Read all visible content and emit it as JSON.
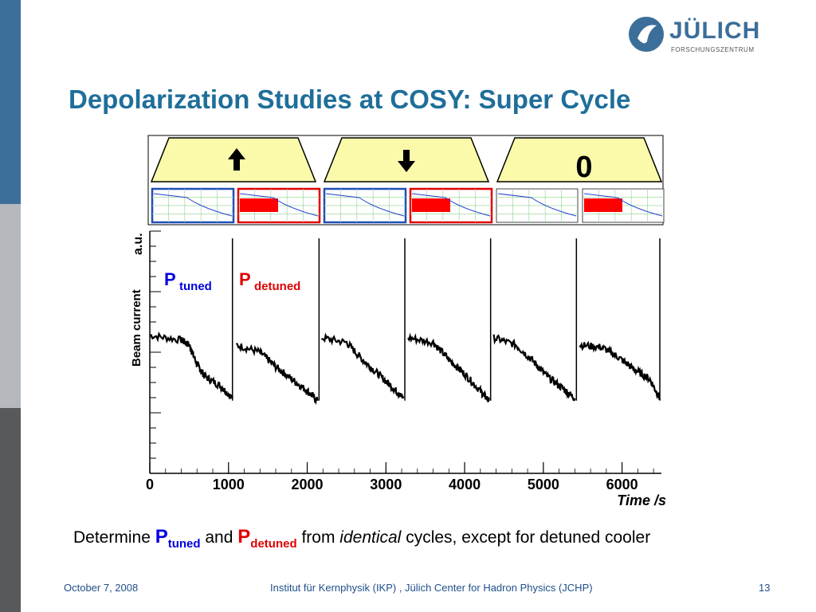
{
  "logo": {
    "name": "JÜLICH",
    "subtitle": "FORSCHUNGSZENTRUM"
  },
  "slide": {
    "title": "Depolarization Studies at COSY: Super Cycle"
  },
  "cycle_boxes": {
    "up_icon": "arrow-up-icon",
    "down_icon": "arrow-down-icon",
    "zero_label": "0"
  },
  "plot_labels": {
    "y_label_1": "Beam current",
    "y_label_2": "a.u.",
    "p_tuned_main": "P",
    "p_tuned_sub": "tuned",
    "p_detuned_main": "P",
    "p_detuned_sub": "detuned"
  },
  "colors": {
    "brand_blue": "#3b6f9a",
    "title_blue": "#1f6e9a",
    "tuned": "#0000e0",
    "detuned": "#e00000"
  },
  "chart_data": {
    "type": "line",
    "title": "",
    "xlabel": "Time /s",
    "ylabel": "Beam current a.u.",
    "xlim": [
      0,
      6500
    ],
    "xticks": [
      0,
      1000,
      2000,
      3000,
      4000,
      5000,
      6000
    ],
    "series": [
      {
        "cycle": 1,
        "x": [
          0,
          400,
          500,
          600,
          700,
          900,
          1050
        ],
        "y": [
          0.57,
          0.55,
          0.53,
          0.45,
          0.4,
          0.36,
          0.31
        ]
      },
      {
        "cycle": 2,
        "x": [
          1100,
          1400,
          1600,
          1800,
          2000,
          2130
        ],
        "y": [
          0.53,
          0.5,
          0.44,
          0.39,
          0.34,
          0.3
        ]
      },
      {
        "cycle": 3,
        "x": [
          2180,
          2500,
          2700,
          2900,
          3100,
          3220
        ],
        "y": [
          0.56,
          0.54,
          0.47,
          0.41,
          0.35,
          0.31
        ]
      },
      {
        "cycle": 4,
        "x": [
          3280,
          3600,
          3800,
          4000,
          4200,
          4310
        ],
        "y": [
          0.56,
          0.54,
          0.47,
          0.41,
          0.34,
          0.3
        ]
      },
      {
        "cycle": 5,
        "x": [
          4370,
          4650,
          4850,
          5050,
          5250,
          5400
        ],
        "y": [
          0.56,
          0.53,
          0.47,
          0.4,
          0.35,
          0.31
        ]
      },
      {
        "cycle": 6,
        "x": [
          5460,
          5750,
          5950,
          6150,
          6350,
          6480
        ],
        "y": [
          0.53,
          0.52,
          0.48,
          0.43,
          0.39,
          0.31
        ]
      }
    ],
    "injection_spikes_x": [
      1050,
      2150,
      3240,
      4330,
      5420,
      6480
    ]
  },
  "caption": {
    "text_1": "Determine ",
    "p1_main": "P",
    "p1_sub": "tuned",
    "text_2": " and ",
    "p2_main": "P",
    "p2_sub": "detuned",
    "text_3": " from ",
    "text_4": "identical",
    "text_5": " cycles, except for detuned cooler"
  },
  "footer": {
    "date": "October 7, 2008",
    "institute": "Institut für Kernphysik (IKP) , Jülich Center for Hadron Physics (JCHP)",
    "page": "13"
  }
}
